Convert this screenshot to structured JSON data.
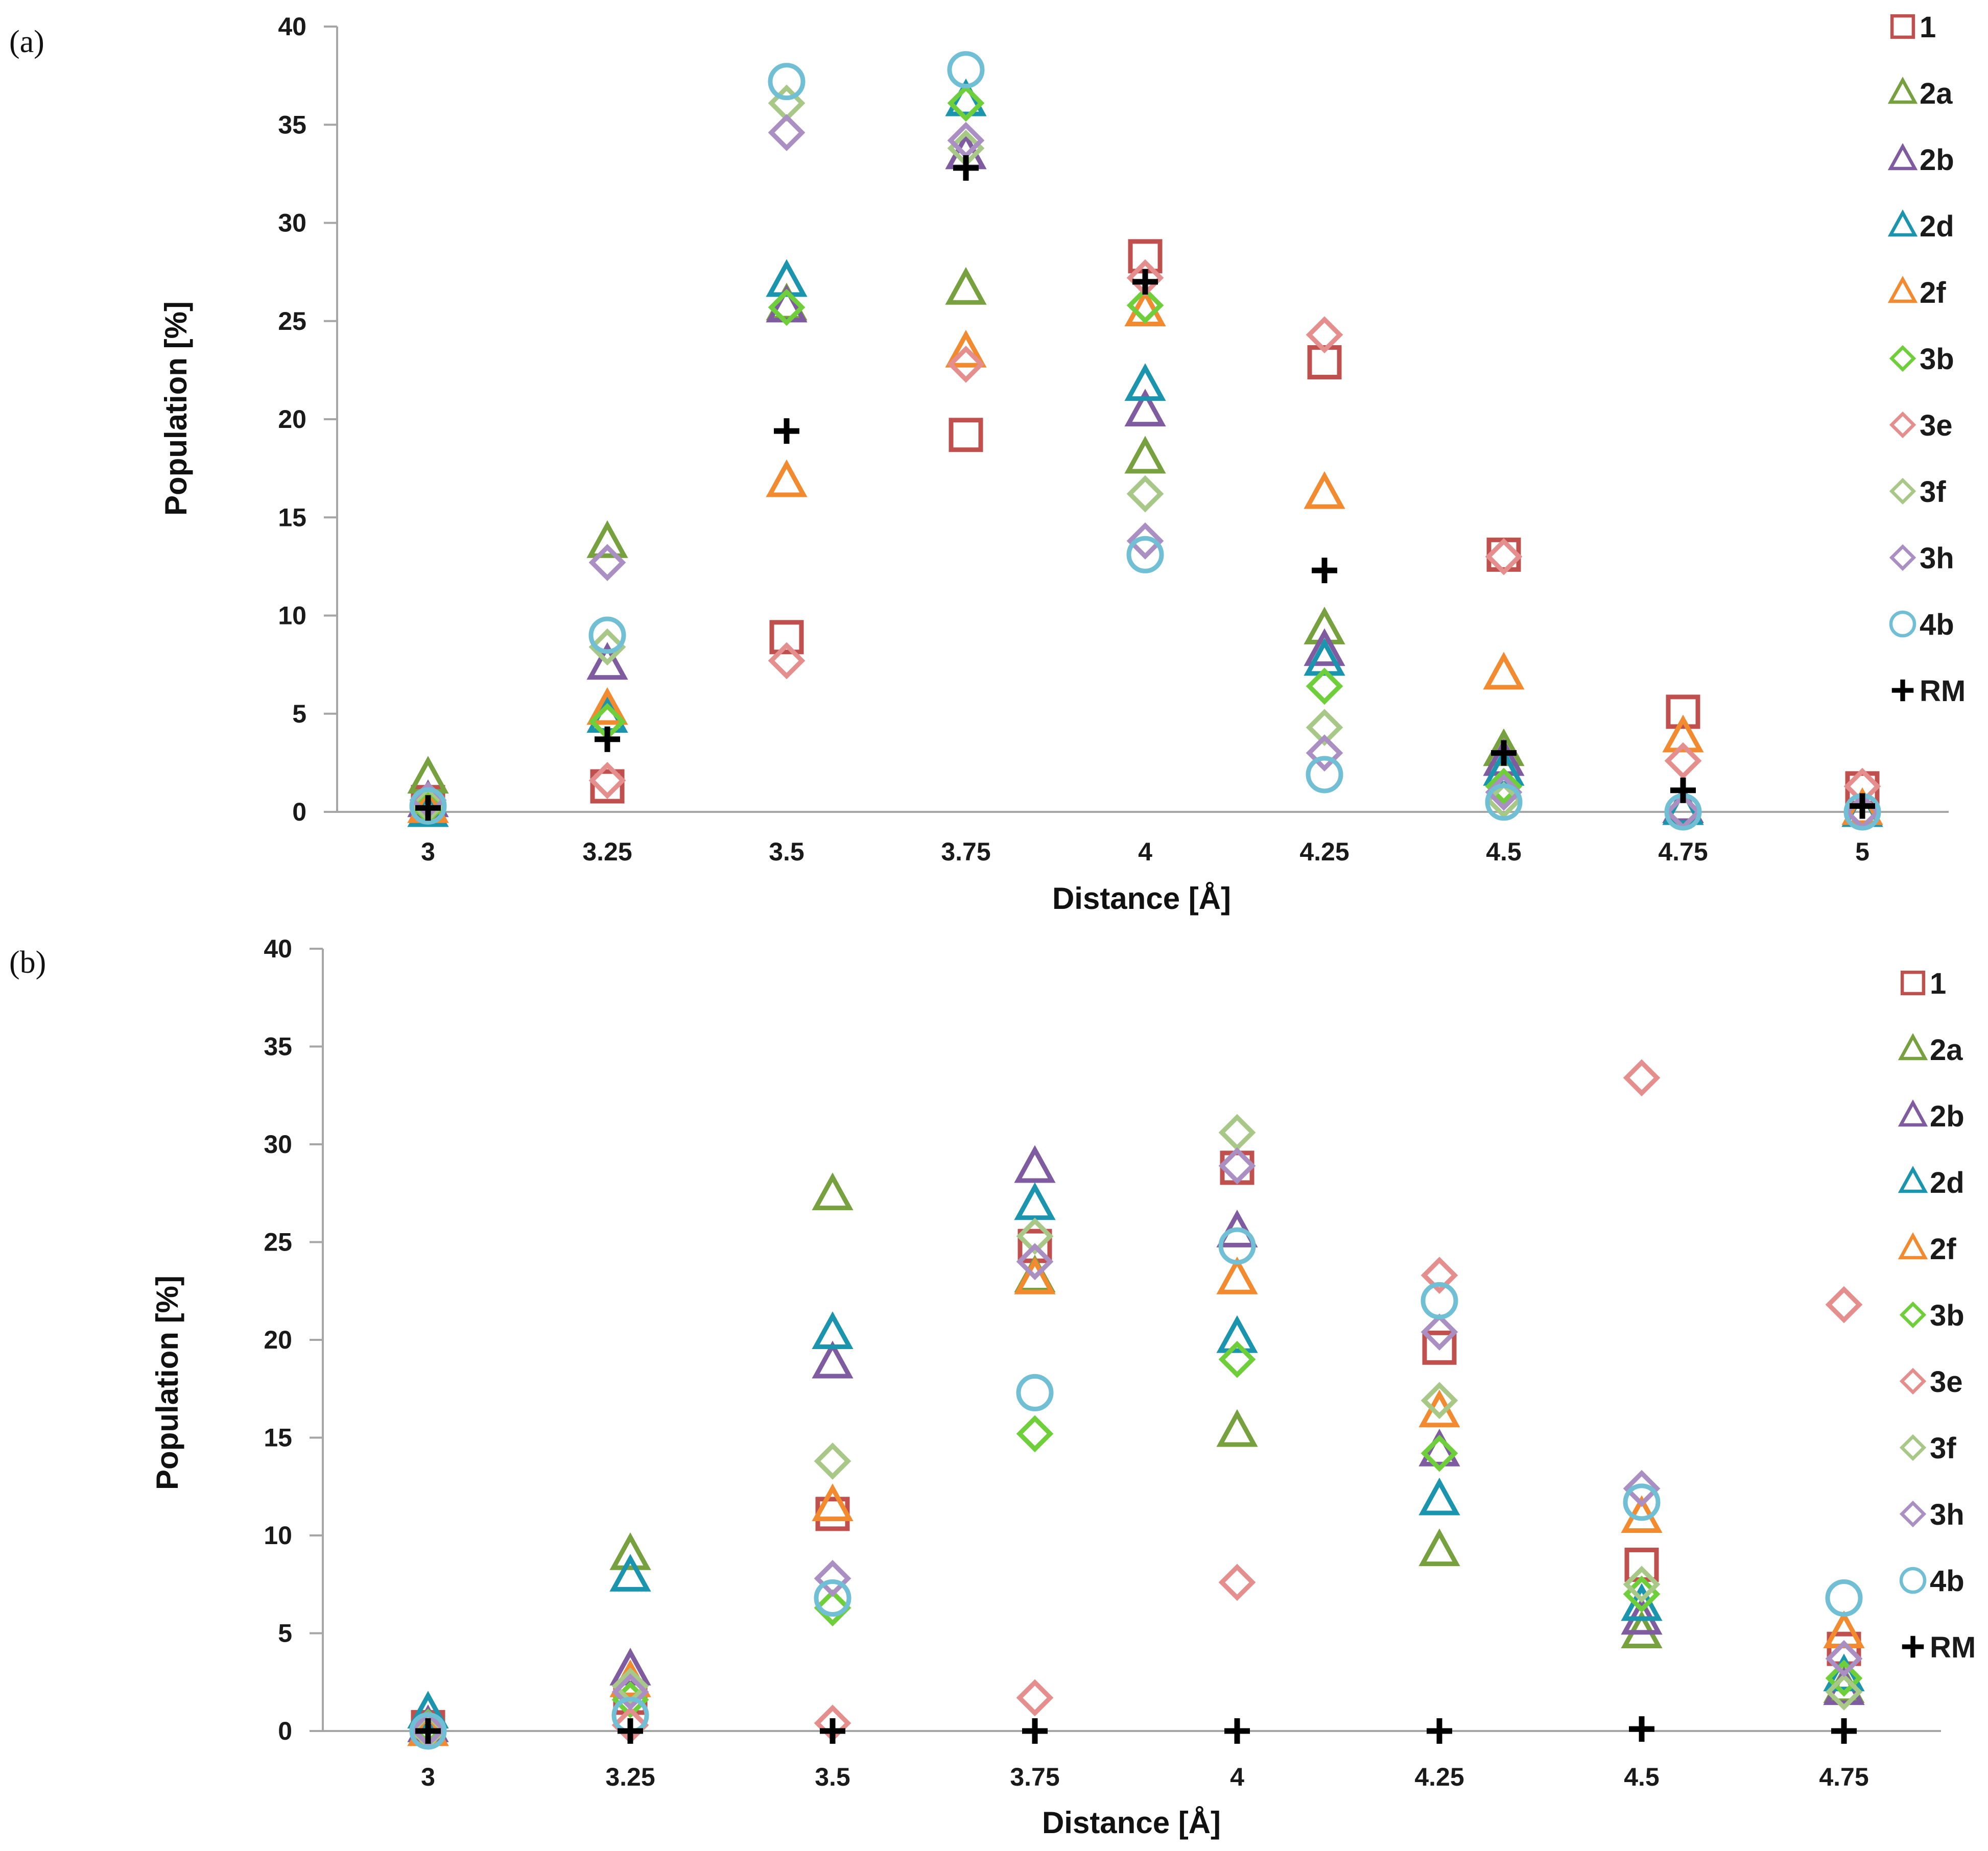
{
  "colors": {
    "1": "#c0504d",
    "2a": "#77a03e",
    "2b": "#7f5ba0",
    "2d": "#1b94ad",
    "2f": "#f28a30",
    "3b": "#6fcf3a",
    "3e": "#e58e8e",
    "3f": "#a8c887",
    "3h": "#a98fc2",
    "4b": "#70bfd4",
    "RM": "#000000"
  },
  "markers": {
    "1": "square",
    "2a": "triangle",
    "2b": "triangle",
    "2d": "triangle",
    "2f": "triangle",
    "3b": "diamond",
    "3e": "diamond",
    "3f": "diamond",
    "3h": "diamond",
    "4b": "circle",
    "RM": "plus"
  },
  "chart_data": [
    {
      "panel_label": "(a)",
      "type": "scatter",
      "xlabel": "Distance [Å]",
      "ylabel": "Population [%]",
      "ylim": [
        0,
        40
      ],
      "yticks": [
        "0",
        "5",
        "10",
        "15",
        "20",
        "25",
        "30",
        "35",
        "40"
      ],
      "x": [
        "3",
        "3.25",
        "3.5",
        "3.75",
        "4",
        "4.25",
        "4.5",
        "4.75",
        "5"
      ],
      "legend": "right",
      "series": [
        {
          "name": "1",
          "values": [
            0.5,
            1.3,
            8.9,
            19.2,
            28.3,
            22.9,
            13.1,
            5.1,
            1.2
          ]
        },
        {
          "name": "2a",
          "values": [
            1.7,
            13.7,
            25.8,
            26.6,
            18.0,
            9.3,
            3.1,
            0.2,
            0.0
          ]
        },
        {
          "name": "2b",
          "values": [
            0.5,
            7.5,
            25.7,
            33.5,
            20.4,
            8.2,
            2.6,
            0.2,
            0.0
          ]
        },
        {
          "name": "2d",
          "values": [
            0.0,
            4.8,
            27.0,
            36.2,
            21.7,
            7.7,
            2.1,
            0.1,
            0.0
          ]
        },
        {
          "name": "2f",
          "values": [
            0.2,
            5.2,
            16.8,
            23.4,
            25.5,
            16.2,
            7.0,
            3.8,
            0.1
          ]
        },
        {
          "name": "3b",
          "values": [
            0.3,
            4.6,
            25.7,
            36.1,
            25.8,
            6.4,
            1.3,
            0.0,
            0.0
          ]
        },
        {
          "name": "3e",
          "values": [
            0.6,
            1.6,
            7.7,
            22.8,
            27.2,
            24.3,
            13.0,
            2.6,
            1.3
          ]
        },
        {
          "name": "3f",
          "values": [
            0.4,
            8.4,
            36.1,
            33.8,
            16.2,
            4.3,
            0.6,
            0.0,
            0.0
          ]
        },
        {
          "name": "3h",
          "values": [
            0.6,
            12.7,
            34.6,
            34.2,
            13.8,
            3.0,
            1.0,
            0.0,
            0.0
          ]
        },
        {
          "name": "4b",
          "values": [
            0.3,
            9.0,
            37.2,
            37.8,
            13.1,
            1.9,
            0.5,
            0.0,
            0.0
          ]
        },
        {
          "name": "RM",
          "values": [
            0.2,
            3.7,
            19.4,
            32.8,
            27.0,
            12.3,
            3.0,
            1.1,
            0.3
          ]
        }
      ]
    },
    {
      "panel_label": "(b)",
      "type": "scatter",
      "xlabel": "Distance [Å]",
      "ylabel": "Population [%]",
      "ylim": [
        0,
        40
      ],
      "yticks": [
        "0",
        "5",
        "10",
        "15",
        "20",
        "25",
        "30",
        "35",
        "40"
      ],
      "x": [
        "3",
        "3.25",
        "3.5",
        "3.75",
        "4",
        "4.25",
        "4.5",
        "4.75"
      ],
      "legend": "right",
      "series": [
        {
          "name": "1",
          "values": [
            0.2,
            1.7,
            11.1,
            24.8,
            28.8,
            19.6,
            8.5,
            4.2
          ]
        },
        {
          "name": "2a",
          "values": [
            0.0,
            9.0,
            27.4,
            23.2,
            15.3,
            9.2,
            5.0,
            2.2
          ]
        },
        {
          "name": "2b",
          "values": [
            0.2,
            3.1,
            18.8,
            28.8,
            25.5,
            14.3,
            5.7,
            2.1
          ]
        },
        {
          "name": "2d",
          "values": [
            0.9,
            7.9,
            20.3,
            26.9,
            20.1,
            11.8,
            6.4,
            2.8
          ]
        },
        {
          "name": "2f",
          "values": [
            0.0,
            2.5,
            11.5,
            23.1,
            23.1,
            16.3,
            10.9,
            5.0
          ]
        },
        {
          "name": "3b",
          "values": [
            0.2,
            1.6,
            6.3,
            15.2,
            19.0,
            14.2,
            7.0,
            2.7
          ]
        },
        {
          "name": "3e",
          "values": [
            0.0,
            0.3,
            0.4,
            1.7,
            7.6,
            23.3,
            33.4,
            21.8
          ]
        },
        {
          "name": "3f",
          "values": [
            0.0,
            2.3,
            13.8,
            25.3,
            30.6,
            16.9,
            7.5,
            2.0
          ]
        },
        {
          "name": "3h",
          "values": [
            0.1,
            2.0,
            7.8,
            24.0,
            28.9,
            20.4,
            12.4,
            3.7
          ]
        },
        {
          "name": "4b",
          "values": [
            0.0,
            0.8,
            6.8,
            17.3,
            24.8,
            22.0,
            11.7,
            6.8
          ]
        },
        {
          "name": "RM",
          "values": [
            0.0,
            0.0,
            0.0,
            0.0,
            0.0,
            0.0,
            0.1,
            0.0
          ]
        }
      ]
    }
  ]
}
